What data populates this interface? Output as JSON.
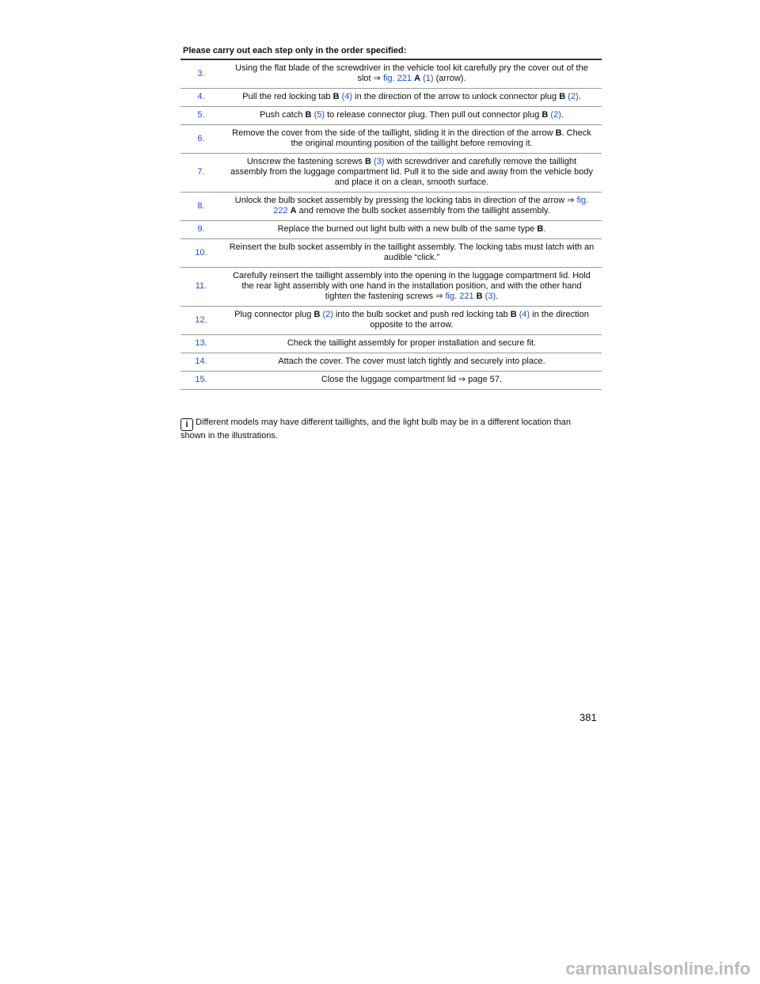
{
  "header": {
    "title": "Please carry out each step only in the order specified:"
  },
  "steps": [
    {
      "number": "3.",
      "text": [
        "Using the flat blade of the screwdriver in the vehicle tool kit carefully pry the cover out of the slot ⇒",
        "fig. 221",
        "A",
        "(1)",
        "(arrow)."
      ]
    },
    {
      "number": "4.",
      "text": [
        "Pull the red locking tab",
        "B",
        "(4)",
        "in the direction of the arrow to unlock connector plug",
        "B",
        "(2)",
        "."
      ]
    },
    {
      "number": "5.",
      "text": [
        "Push catch",
        "B",
        "(5)",
        "to release connector plug. Then pull out connector plug",
        "B",
        "(2)",
        "."
      ]
    },
    {
      "number": "6.",
      "text": [
        "Remove the cover from the side of the taillight, sliding it in the direction of the arrow",
        "B",
        ". Check the original mounting position of the taillight before removing it."
      ]
    },
    {
      "number": "7.",
      "text": [
        "Unscrew the fastening screws",
        "B",
        "(3)",
        "with screwdriver and carefully remove the taillight assembly from the luggage compartment lid. Pull it to the side and away from the vehicle body and place it on a clean, smooth surface."
      ]
    },
    {
      "number": "8.",
      "text": [
        "Unlock the bulb socket assembly by pressing the locking tabs in direction of the arrow ⇒",
        "fig. 222",
        "A",
        "and remove the bulb socket assembly from the taillight assembly."
      ]
    },
    {
      "number": "9.",
      "text": [
        "Replace the burned out light bulb with a new bulb of the same type",
        "B",
        "."
      ]
    },
    {
      "number": "10.",
      "text": [
        "Reinsert the bulb socket assembly in the taillight assembly. The locking tabs must latch with an audible “click.”"
      ]
    },
    {
      "number": "11.",
      "text": [
        "Carefully reinsert the taillight assembly into the opening in the luggage compartment lid. Hold the rear light assembly with one hand in the installation position, and with the other hand tighten the fastening screws ⇒",
        "fig. 221",
        "B",
        "(3)",
        "."
      ]
    },
    {
      "number": "12.",
      "text": [
        "Plug connector plug",
        "B",
        "(2)",
        "into the bulb socket and push red locking tab",
        "B",
        "(4)",
        "in the direction opposite to the arrow."
      ]
    },
    {
      "number": "13.",
      "text": [
        "Check the taillight assembly for proper installation and secure fit."
      ]
    },
    {
      "number": "14.",
      "text": [
        "Attach the cover. The cover must latch tightly and securely into place."
      ]
    },
    {
      "number": "15.",
      "text": [
        "Close the luggage compartment lid ⇒ page 57."
      ]
    }
  ],
  "note": "Different models may have different taillights, and the light bulb may be in a different location than shown in the illustrations.",
  "page_number": "381",
  "footer": "carmanualsonline.info"
}
